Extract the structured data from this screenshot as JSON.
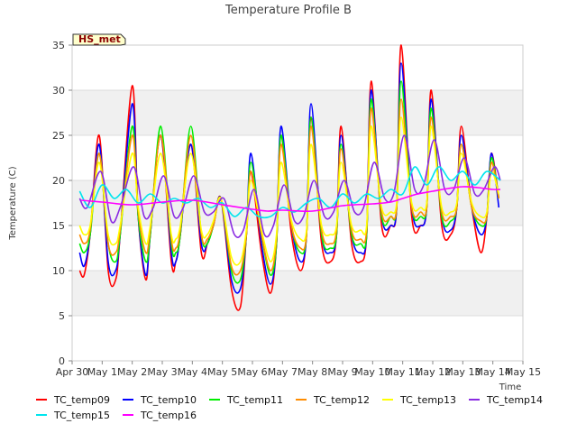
{
  "chart_data": {
    "type": "line",
    "title": "Temperature Profile B",
    "xlabel": "Time",
    "ylabel": "Temperature (C)",
    "badge": "HS_met",
    "x_ticks": [
      "Apr 30",
      "May 1",
      "May 2",
      "May 3",
      "May 4",
      "May 5",
      "May 6",
      "May 7",
      "May 8",
      "May 9",
      "May 10",
      "May 11",
      "May 12",
      "May 13",
      "May 14",
      "May 15"
    ],
    "xlim": [
      0,
      15
    ],
    "ylim": [
      0,
      35
    ],
    "y_ticks": [
      0,
      5,
      10,
      15,
      20,
      25,
      30,
      35
    ],
    "grid": "horizontal bands",
    "legend_position": "bottom",
    "x_unit": "days since Apr 30",
    "series": [
      {
        "name": "TC_temp09",
        "color": "#ff0000",
        "x": [
          0.25,
          0.4,
          0.6,
          0.9,
          1.2,
          1.45,
          1.6,
          2.0,
          2.2,
          2.45,
          2.6,
          2.95,
          3.3,
          3.45,
          3.6,
          3.95,
          4.3,
          4.5,
          4.7,
          4.95,
          5.3,
          5.6,
          5.8,
          5.95,
          6.3,
          6.6,
          6.8,
          6.95,
          7.3,
          7.6,
          7.8,
          7.95,
          8.3,
          8.6,
          8.8,
          8.95,
          9.3,
          9.6,
          9.8,
          9.95,
          10.3,
          10.6,
          10.8,
          10.95,
          11.3,
          11.6,
          11.8,
          11.95,
          12.3,
          12.6,
          12.8,
          12.95,
          13.3,
          13.6,
          13.8,
          13.95,
          14.2
        ],
        "y": [
          10,
          9.5,
          14,
          25,
          10,
          9,
          14,
          30.5,
          16,
          9,
          14,
          25,
          11,
          11,
          14,
          24,
          12,
          13,
          15,
          18,
          8,
          6,
          14,
          21,
          12,
          7.5,
          13,
          25,
          14,
          10,
          14,
          27,
          13,
          11,
          14,
          26,
          13,
          11,
          14,
          31,
          15,
          15,
          17,
          35,
          16,
          15,
          17,
          30,
          15,
          14,
          17,
          26,
          17,
          12,
          16,
          23,
          18
        ]
      },
      {
        "name": "TC_temp10",
        "color": "#0000ff",
        "x": [
          0.25,
          0.4,
          0.6,
          0.9,
          1.2,
          1.45,
          1.6,
          2.0,
          2.2,
          2.45,
          2.6,
          2.95,
          3.3,
          3.45,
          3.6,
          3.95,
          4.3,
          4.5,
          4.7,
          4.95,
          5.3,
          5.6,
          5.8,
          5.95,
          6.3,
          6.6,
          6.8,
          6.95,
          7.3,
          7.6,
          7.8,
          7.95,
          8.3,
          8.6,
          8.8,
          8.95,
          9.3,
          9.6,
          9.8,
          9.95,
          10.3,
          10.6,
          10.8,
          10.95,
          11.3,
          11.6,
          11.8,
          11.95,
          12.3,
          12.6,
          12.8,
          12.95,
          13.3,
          13.6,
          13.8,
          13.95,
          14.2
        ],
        "y": [
          12,
          10.5,
          14,
          24,
          11,
          10,
          14,
          28.5,
          16,
          9.5,
          14,
          25,
          12,
          11,
          14,
          24,
          13,
          13,
          15,
          18,
          9,
          8,
          14,
          23,
          13,
          8.5,
          13,
          26,
          15,
          11,
          14,
          28.5,
          14,
          12,
          14,
          25,
          14,
          12,
          14,
          30,
          16,
          15,
          17,
          33,
          17,
          15,
          17,
          29,
          16,
          14.5,
          17,
          25,
          17,
          14,
          16,
          23,
          17
        ]
      },
      {
        "name": "TC_temp11",
        "color": "#00ee00",
        "x": [
          0.25,
          0.4,
          0.6,
          0.9,
          1.2,
          1.45,
          1.6,
          2.0,
          2.2,
          2.45,
          2.6,
          2.95,
          3.3,
          3.45,
          3.6,
          3.95,
          4.3,
          4.5,
          4.7,
          4.95,
          5.3,
          5.6,
          5.8,
          5.95,
          6.3,
          6.6,
          6.8,
          6.95,
          7.3,
          7.6,
          7.8,
          7.95,
          8.3,
          8.6,
          8.8,
          8.95,
          9.3,
          9.6,
          9.8,
          9.95,
          10.3,
          10.6,
          10.8,
          10.95,
          11.3,
          11.6,
          11.8,
          11.95,
          12.3,
          12.6,
          12.8,
          12.95,
          13.3,
          13.6,
          13.8,
          13.95,
          14.2
        ],
        "y": [
          13,
          12,
          14,
          23,
          13,
          11,
          14,
          26,
          16,
          11,
          14,
          26,
          13,
          12,
          14,
          26,
          14,
          13,
          15,
          18,
          10,
          9,
          14,
          22,
          14,
          9.5,
          13,
          25,
          15,
          12,
          14,
          27,
          14,
          12.5,
          14,
          24,
          14,
          13,
          14,
          29,
          16,
          16,
          17,
          31,
          17,
          16,
          17,
          28,
          16,
          15.5,
          17,
          24,
          17,
          15,
          16,
          22.5,
          18
        ]
      },
      {
        "name": "TC_temp12",
        "color": "#ff8c00",
        "x": [
          0.25,
          0.4,
          0.6,
          0.9,
          1.2,
          1.45,
          1.6,
          2.0,
          2.2,
          2.45,
          2.6,
          2.95,
          3.3,
          3.45,
          3.6,
          3.95,
          4.3,
          4.5,
          4.7,
          4.95,
          5.3,
          5.6,
          5.8,
          5.95,
          6.3,
          6.6,
          6.8,
          6.95,
          7.3,
          7.6,
          7.8,
          7.95,
          8.3,
          8.6,
          8.8,
          8.95,
          9.3,
          9.6,
          9.8,
          9.95,
          10.3,
          10.6,
          10.8,
          10.95,
          11.3,
          11.6,
          11.8,
          11.95,
          12.3,
          12.6,
          12.8,
          12.95,
          13.3,
          13.6,
          13.8,
          13.95,
          14.2
        ],
        "y": [
          14,
          13,
          14.5,
          23,
          13,
          12,
          14.5,
          25,
          16.5,
          12,
          14.5,
          25,
          13.5,
          12.5,
          14.5,
          25,
          14,
          13.5,
          15,
          18,
          10.5,
          10,
          14,
          21,
          14,
          10,
          13.5,
          24,
          15,
          12.5,
          14,
          26,
          14.5,
          13,
          14.5,
          23.5,
          14.5,
          13.5,
          14.5,
          28,
          16.5,
          16,
          17,
          29,
          17,
          16.5,
          17,
          27,
          16.5,
          16,
          17,
          24,
          17,
          15.5,
          16,
          22,
          18
        ]
      },
      {
        "name": "TC_temp13",
        "color": "#ffff00",
        "x": [
          0.25,
          0.4,
          0.6,
          0.9,
          1.2,
          1.45,
          1.6,
          2.0,
          2.2,
          2.45,
          2.6,
          2.95,
          3.3,
          3.45,
          3.6,
          3.95,
          4.3,
          4.5,
          4.7,
          4.95,
          5.3,
          5.6,
          5.8,
          5.95,
          6.3,
          6.6,
          6.8,
          6.95,
          7.3,
          7.6,
          7.8,
          7.95,
          8.3,
          8.6,
          8.8,
          8.95,
          9.3,
          9.6,
          9.8,
          9.95,
          10.3,
          10.6,
          10.8,
          10.95,
          11.3,
          11.6,
          11.8,
          11.95,
          12.3,
          12.6,
          12.8,
          12.95,
          13.3,
          13.6,
          13.8,
          13.95,
          14.2
        ],
        "y": [
          15,
          14,
          15,
          22,
          14,
          13,
          15,
          23,
          17,
          13,
          15,
          23,
          14,
          13.5,
          15,
          23,
          14.5,
          14,
          15.5,
          18,
          11.5,
          11,
          14.5,
          20,
          14.5,
          11,
          14,
          22,
          15.5,
          13.5,
          14.5,
          24,
          15,
          14,
          15,
          22,
          15,
          14.5,
          15,
          26,
          17,
          16.5,
          17.5,
          27,
          17.5,
          17,
          17.5,
          26,
          17,
          16.5,
          17.5,
          23,
          17.5,
          16,
          16.5,
          21,
          18.5
        ]
      },
      {
        "name": "TC_temp14",
        "color": "#8a2be2",
        "x": [
          0.25,
          0.5,
          0.95,
          1.3,
          1.6,
          2.05,
          2.4,
          2.7,
          3.05,
          3.4,
          3.7,
          4.05,
          4.4,
          4.7,
          5.05,
          5.4,
          5.7,
          6.05,
          6.4,
          6.7,
          7.05,
          7.4,
          7.7,
          8.05,
          8.4,
          8.7,
          9.05,
          9.4,
          9.7,
          10.05,
          10.4,
          10.7,
          11.05,
          11.4,
          11.7,
          12.05,
          12.4,
          12.7,
          13.05,
          13.4,
          13.7,
          14.05,
          14.25
        ],
        "y": [
          18,
          17,
          21,
          15.5,
          17,
          21.5,
          16,
          17,
          20.5,
          16,
          17,
          20.5,
          16.5,
          16.5,
          18,
          14,
          14.5,
          19,
          14,
          15,
          19.5,
          15.5,
          16,
          20,
          16,
          16.5,
          20,
          16.5,
          17,
          22,
          18,
          18.5,
          25,
          19,
          19.5,
          24.5,
          19,
          19,
          22.5,
          18.5,
          19,
          21.5,
          20
        ]
      },
      {
        "name": "TC_temp15",
        "color": "#00e5ee",
        "x": [
          0.25,
          0.6,
          1.0,
          1.4,
          1.8,
          2.2,
          2.6,
          3.0,
          3.4,
          3.8,
          4.2,
          4.6,
          5.0,
          5.4,
          5.8,
          6.2,
          6.6,
          7.0,
          7.4,
          7.8,
          8.2,
          8.6,
          9.0,
          9.4,
          9.8,
          10.2,
          10.6,
          11.0,
          11.4,
          11.8,
          12.2,
          12.6,
          13.0,
          13.4,
          13.8,
          14.25
        ],
        "y": [
          18.8,
          17,
          19.5,
          18,
          19,
          17.5,
          18.5,
          17.5,
          18,
          17.5,
          18,
          17,
          17.5,
          16,
          17,
          16,
          16,
          17,
          16.5,
          17.5,
          18,
          17,
          18.5,
          17.5,
          18.5,
          18,
          19,
          18.5,
          21.5,
          19.5,
          21.5,
          20,
          21,
          19.5,
          21,
          20
        ]
      },
      {
        "name": "TC_temp16",
        "color": "#ff00ff",
        "x": [
          0.3,
          1.0,
          2.0,
          3.0,
          4.0,
          5.0,
          6.0,
          6.5,
          7.0,
          8.0,
          9.0,
          10.0,
          10.6,
          11.0,
          11.5,
          12.0,
          12.5,
          13.0,
          13.5,
          14.0,
          14.25
        ],
        "y": [
          17.8,
          17.6,
          17.3,
          17.6,
          17.8,
          17.3,
          16.8,
          16.6,
          16.7,
          16.6,
          17.2,
          17.4,
          17.6,
          18.0,
          18.5,
          18.8,
          19.1,
          19.3,
          19.2,
          19.0,
          19.0
        ]
      }
    ]
  }
}
